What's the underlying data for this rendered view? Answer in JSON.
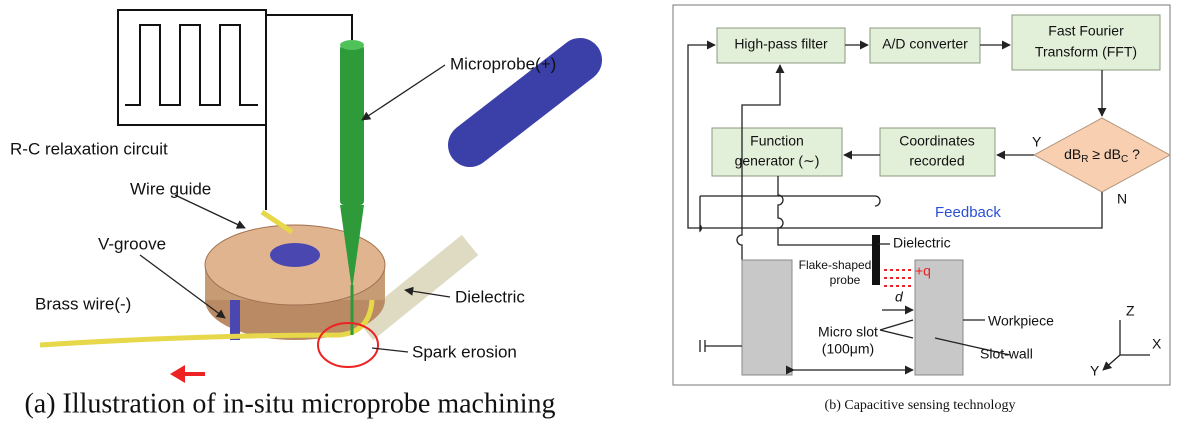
{
  "panel_a": {
    "labels": {
      "circuit": "R-C relaxation circuit",
      "microprobe": "Microprobe(+)",
      "wire_guide": "Wire guide",
      "v_groove": "V-groove",
      "brass_wire": "Brass wire(-)",
      "dielectric": "Dielectric",
      "spark": "Spark erosion"
    },
    "caption": "(a) Illustration of in-situ microprobe machining"
  },
  "panel_b": {
    "blocks": {
      "high_pass": "High-pass filter",
      "ad": "A/D converter",
      "fft": [
        "Fast Fourier",
        "Transform (FFT)"
      ],
      "function_gen": [
        "Function",
        "generator (∼)"
      ],
      "coordinates": [
        "Coordinates",
        "recorded"
      ]
    },
    "decision": [
      "dB",
      "R",
      " ≥ dB",
      "C",
      " ?"
    ],
    "yes": "Y",
    "no": "N",
    "feedback": "Feedback",
    "labels": {
      "dielectric": "Dielectric",
      "probe": [
        "Flake-shaped",
        "probe"
      ],
      "charge": "+q",
      "distance": "d",
      "workpiece": "Workpiece",
      "slot": [
        "Micro slot",
        "(100μm)"
      ],
      "slot_wall": "Slot-wall"
    },
    "axes": {
      "z": "Z",
      "x": "X",
      "y": "Y"
    },
    "caption": "(b) Capacitive sensing technology"
  }
}
